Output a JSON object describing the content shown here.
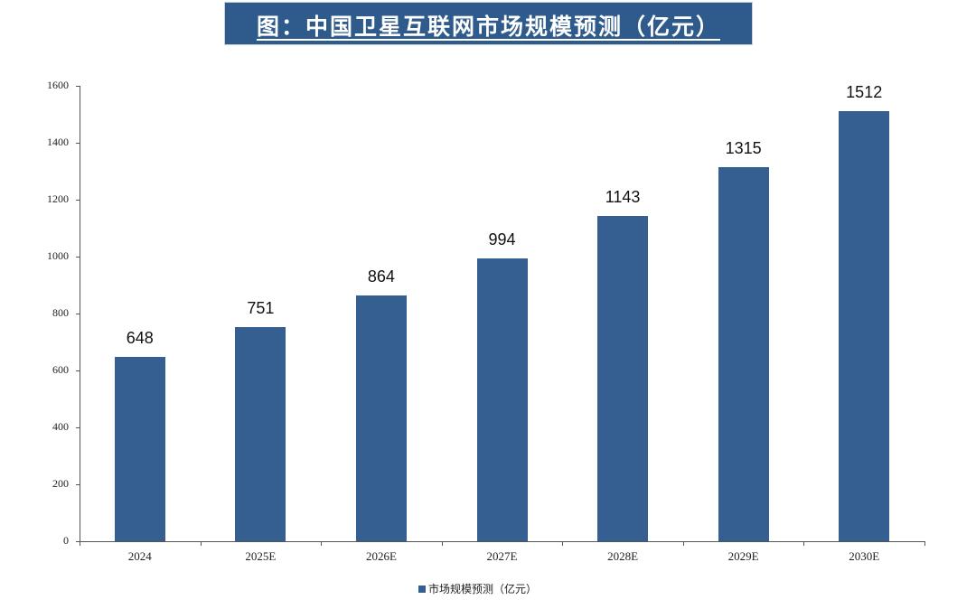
{
  "title": "图：中国卫星互联网市场规模预测（亿元）",
  "colors": {
    "bar": "#365f91",
    "title_bg": "#2f5b8c"
  },
  "chart_data": {
    "type": "bar",
    "title": "图：中国卫星互联网市场规模预测（亿元）",
    "categories": [
      "2024",
      "2025E",
      "2026E",
      "2027E",
      "2028E",
      "2029E",
      "2030E"
    ],
    "series": [
      {
        "name": "市场规模预测（亿元）",
        "values": [
          648,
          751,
          864,
          994,
          1143,
          1315,
          1512
        ]
      }
    ],
    "xlabel": "",
    "ylabel": "",
    "ylim": [
      0,
      1600
    ],
    "yticks": [
      0,
      200,
      400,
      600,
      800,
      1000,
      1200,
      1400,
      1600
    ],
    "grid": false,
    "data_labels": true,
    "legend_position": "bottom"
  },
  "legend": {
    "label": "市场规模预测（亿元）"
  }
}
